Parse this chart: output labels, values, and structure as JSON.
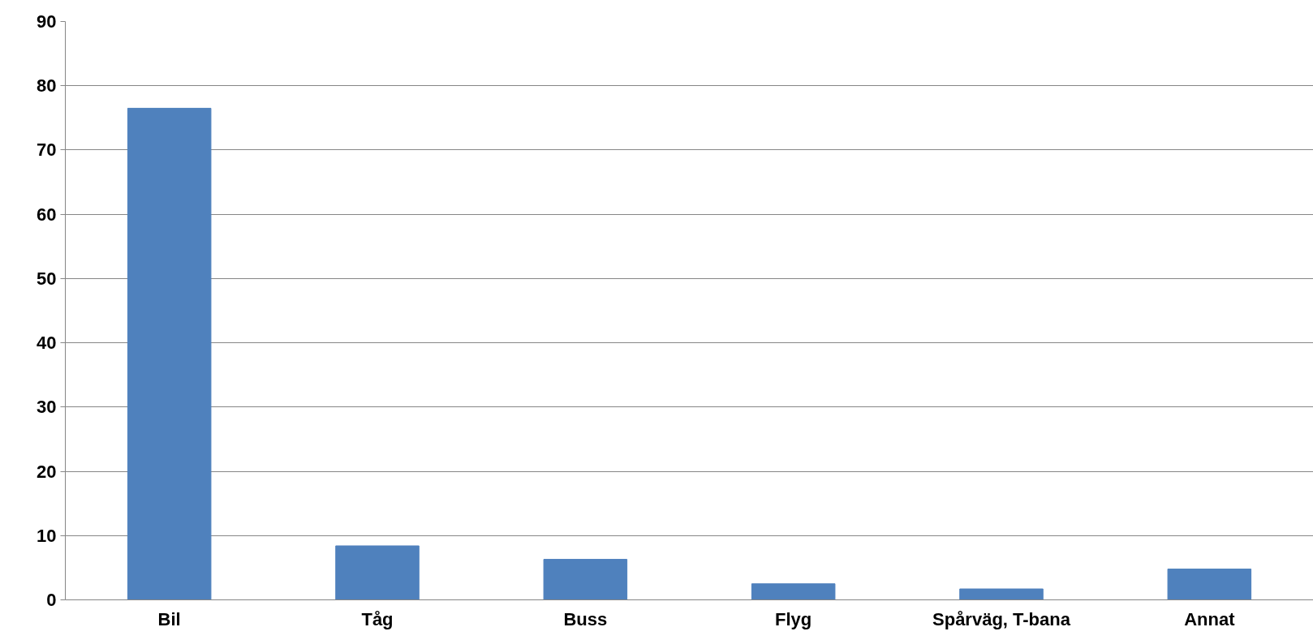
{
  "chart_data": {
    "type": "bar",
    "categories": [
      "Bil",
      "Tåg",
      "Buss",
      "Flyg",
      "Spårväg, T-bana",
      "Annat"
    ],
    "values": [
      76.5,
      8.4,
      6.3,
      2.5,
      1.7,
      4.8
    ],
    "color": "#4f81bd",
    "ylim": [
      0,
      90
    ],
    "yticks": [
      0,
      10,
      20,
      30,
      40,
      50,
      60,
      70,
      80,
      90
    ],
    "grid": "y"
  }
}
